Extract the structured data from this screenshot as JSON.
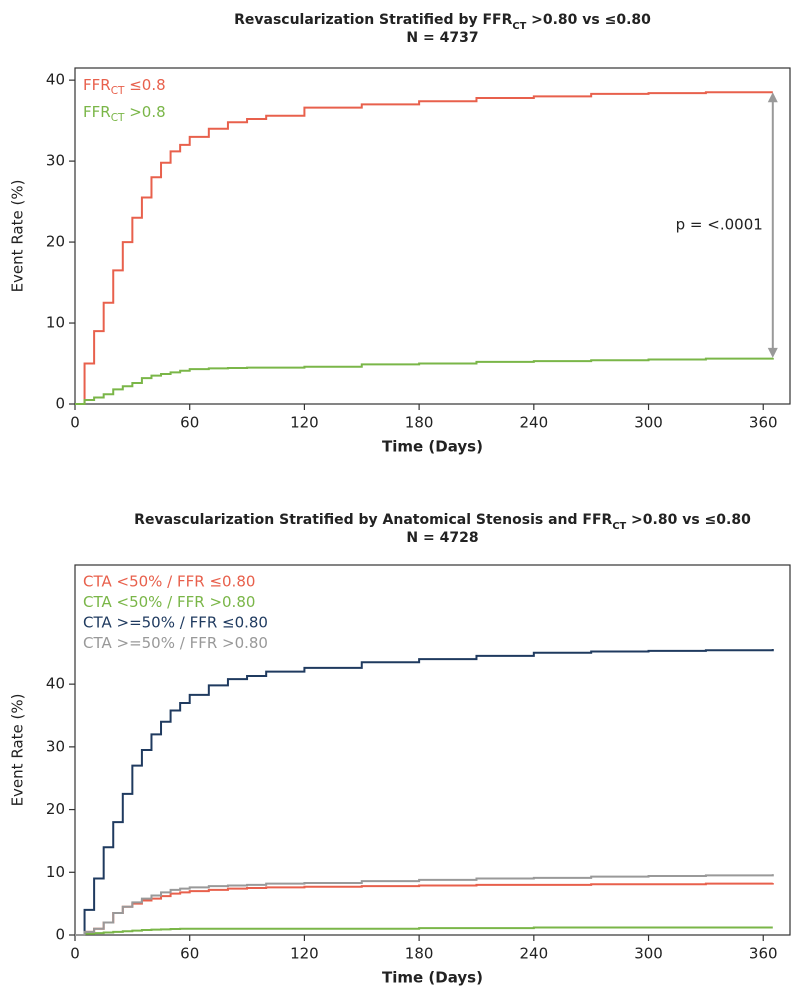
{
  "chart_data": [
    {
      "type": "line",
      "step": true,
      "title": [
        {
          "text": "Revascularization Stratified by FFR"
        },
        {
          "text": "CT",
          "sub": true
        },
        {
          "text": " >0.80 vs ≤0.80"
        }
      ],
      "subtitle": "N = 4737",
      "x_label": "Time (Days)",
      "y_label": "Event Rate (%)",
      "xlim": [
        0,
        374
      ],
      "ylim": [
        0,
        41.5
      ],
      "xticks": [
        0,
        60,
        120,
        180,
        240,
        300,
        360
      ],
      "yticks": [
        0,
        10,
        20,
        30,
        40
      ],
      "legend": "upper left",
      "annotation": "p = <.0001",
      "x": [
        0,
        5,
        10,
        15,
        20,
        25,
        30,
        35,
        40,
        45,
        50,
        55,
        60,
        70,
        80,
        90,
        100,
        120,
        150,
        180,
        210,
        240,
        270,
        300,
        330,
        365
      ],
      "series": [
        {
          "name": [
            {
              "text": "FFR"
            },
            {
              "text": "CT",
              "sub": true
            },
            {
              "text": " ≤0.8"
            }
          ],
          "color": "#e8604c",
          "values": [
            0,
            5,
            9,
            12.5,
            16.5,
            20,
            23,
            25.5,
            28,
            29.8,
            31.2,
            32,
            33,
            34,
            34.8,
            35.2,
            35.6,
            36.6,
            37,
            37.4,
            37.8,
            38,
            38.3,
            38.4,
            38.5,
            38.5
          ]
        },
        {
          "name": [
            {
              "text": "FFR"
            },
            {
              "text": "CT",
              "sub": true
            },
            {
              "text": " >0.8"
            }
          ],
          "color": "#7ab648",
          "values": [
            0,
            0.5,
            0.8,
            1.2,
            1.8,
            2.2,
            2.6,
            3.2,
            3.5,
            3.7,
            3.9,
            4.1,
            4.3,
            4.4,
            4.45,
            4.5,
            4.5,
            4.6,
            4.9,
            5.0,
            5.2,
            5.3,
            5.4,
            5.5,
            5.6,
            5.7
          ]
        }
      ]
    },
    {
      "type": "line",
      "step": true,
      "title": [
        {
          "text": "Revascularization Stratified by Anatomical Stenosis and FFR"
        },
        {
          "text": "CT",
          "sub": true
        },
        {
          "text": " >0.80 vs ≤0.80"
        }
      ],
      "subtitle": "N = 4728",
      "x_label": "Time (Days)",
      "y_label": "Event Rate (%)",
      "xlim": [
        0,
        374
      ],
      "ylim": [
        0,
        59
      ],
      "xticks": [
        0,
        60,
        120,
        180,
        240,
        300,
        360
      ],
      "yticks": [
        0,
        10,
        20,
        30,
        40
      ],
      "legend": "upper left",
      "x": [
        0,
        5,
        10,
        15,
        20,
        25,
        30,
        35,
        40,
        45,
        50,
        55,
        60,
        70,
        80,
        90,
        100,
        120,
        150,
        180,
        210,
        240,
        270,
        300,
        330,
        365
      ],
      "series": [
        {
          "name": "CTA <50% / FFR ≤0.80",
          "color": "#e8604c",
          "values": [
            0,
            0.5,
            1,
            2,
            3.5,
            4.5,
            5,
            5.5,
            5.8,
            6.2,
            6.6,
            6.8,
            7,
            7.2,
            7.4,
            7.5,
            7.6,
            7.7,
            7.8,
            7.9,
            8,
            8,
            8.1,
            8.1,
            8.2,
            8.3
          ]
        },
        {
          "name": "CTA <50% / FFR >0.80",
          "color": "#7ab648",
          "values": [
            0,
            0.2,
            0.3,
            0.4,
            0.5,
            0.6,
            0.7,
            0.8,
            0.85,
            0.9,
            0.95,
            1,
            1,
            1,
            1,
            1,
            1,
            1,
            1,
            1.1,
            1.1,
            1.2,
            1.2,
            1.2,
            1.2,
            1.2
          ]
        },
        {
          "name": "CTA >=50% / FFR ≤0.80",
          "color": "#1f3a5f",
          "values": [
            0,
            4,
            9,
            14,
            18,
            22.5,
            27,
            29.5,
            32,
            34,
            35.8,
            37,
            38.3,
            39.8,
            40.8,
            41.3,
            42,
            42.6,
            43.5,
            44,
            44.5,
            45,
            45.2,
            45.3,
            45.4,
            45.6
          ]
        },
        {
          "name": "CTA >=50% / FFR >0.80",
          "color": "#999999",
          "values": [
            0,
            0.5,
            1,
            2,
            3.5,
            4.5,
            5.2,
            5.8,
            6.3,
            6.8,
            7.2,
            7.4,
            7.6,
            7.8,
            7.9,
            8,
            8.2,
            8.3,
            8.6,
            8.8,
            9,
            9.1,
            9.3,
            9.4,
            9.5,
            9.7
          ]
        }
      ]
    }
  ]
}
